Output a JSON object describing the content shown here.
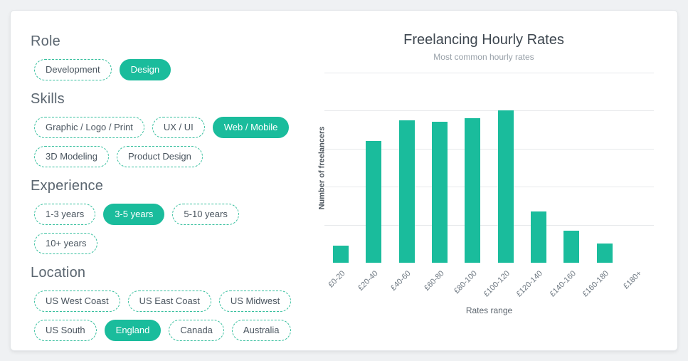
{
  "accent_color": "#1abc9c",
  "filters": {
    "sections": [
      {
        "title": "Role",
        "options": [
          {
            "label": "Development",
            "selected": false,
            "row": 1
          },
          {
            "label": "Design",
            "selected": true,
            "row": 1
          }
        ]
      },
      {
        "title": "Skills",
        "options": [
          {
            "label": "Graphic / Logo / Print",
            "selected": false,
            "row": 1
          },
          {
            "label": "UX / UI",
            "selected": false,
            "row": 1
          },
          {
            "label": "Web / Mobile",
            "selected": true,
            "row": 1
          },
          {
            "label": "3D Modeling",
            "selected": false,
            "row": 2
          },
          {
            "label": "Product Design",
            "selected": false,
            "row": 2
          }
        ]
      },
      {
        "title": "Experience",
        "options": [
          {
            "label": "1-3 years",
            "selected": false,
            "row": 1
          },
          {
            "label": "3-5 years",
            "selected": true,
            "row": 1
          },
          {
            "label": "5-10 years",
            "selected": false,
            "row": 1
          },
          {
            "label": "10+ years",
            "selected": false,
            "row": 2
          }
        ]
      },
      {
        "title": "Location",
        "options": [
          {
            "label": "US West Coast",
            "selected": false,
            "row": 1
          },
          {
            "label": "US East Coast",
            "selected": false,
            "row": 1
          },
          {
            "label": "US Midwest",
            "selected": false,
            "row": 1
          },
          {
            "label": "US South",
            "selected": false,
            "row": 2
          },
          {
            "label": "England",
            "selected": true,
            "row": 2
          },
          {
            "label": "Canada",
            "selected": false,
            "row": 2
          },
          {
            "label": "Australia",
            "selected": false,
            "row": 2
          }
        ]
      }
    ]
  },
  "chart_data": {
    "type": "bar",
    "title": "Freelancing Hourly Rates",
    "subtitle": "Most common hourly rates",
    "categories": [
      "£0-20",
      "£20-40",
      "£40-60",
      "£60-80",
      "£80-100",
      "£100-120",
      "£120-140",
      "£140-160",
      "£160-180",
      "£180+"
    ],
    "values": [
      9,
      64,
      75,
      74,
      76,
      80,
      27,
      17,
      10,
      0
    ],
    "xlabel": "Rates range",
    "ylabel": "Number of freelancers",
    "ylim": [
      0,
      100
    ],
    "gridline_step": 20,
    "grid": true,
    "legend": "none",
    "bar_color": "#1abc9c"
  }
}
